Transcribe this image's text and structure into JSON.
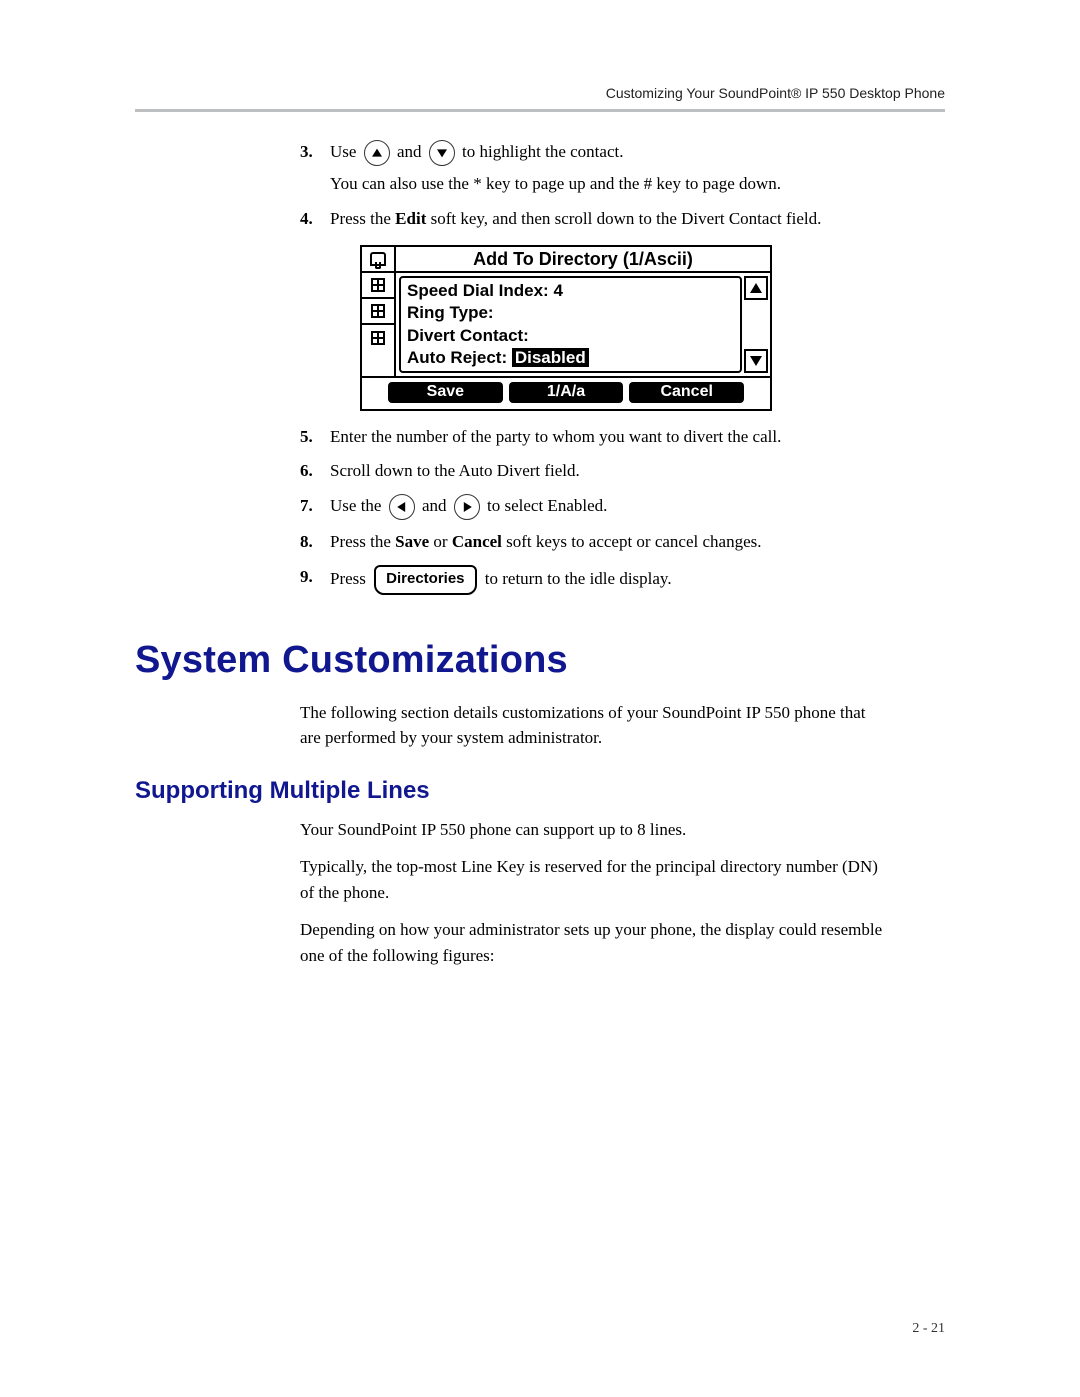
{
  "header": {
    "running_title": "Customizing Your SoundPoint® IP 550 Desktop Phone"
  },
  "steps": [
    {
      "n": "3.",
      "segments": [
        {
          "t": "Use "
        },
        {
          "icon": "up"
        },
        {
          "t": " and "
        },
        {
          "icon": "down"
        },
        {
          "t": " to highlight the contact."
        }
      ],
      "followups": [
        "You can also use the * key to page up and the # key to page down."
      ]
    },
    {
      "n": "4.",
      "segments": [
        {
          "t": "Press the "
        },
        {
          "t": "Edit",
          "b": true
        },
        {
          "t": " soft key, and then scroll down to the Divert Contact field."
        }
      ]
    },
    {
      "n": "5.",
      "segments": [
        {
          "t": "Enter the number of the party to whom you want to divert the call."
        }
      ]
    },
    {
      "n": "6.",
      "segments": [
        {
          "t": "Scroll down to the Auto Divert field."
        }
      ]
    },
    {
      "n": "7.",
      "segments": [
        {
          "t": "Use the "
        },
        {
          "icon": "left"
        },
        {
          "t": " and "
        },
        {
          "icon": "right"
        },
        {
          "t": " to select Enabled."
        }
      ]
    },
    {
      "n": "8.",
      "segments": [
        {
          "t": "Press the "
        },
        {
          "t": "Save",
          "b": true
        },
        {
          "t": " or "
        },
        {
          "t": "Cancel",
          "b": true
        },
        {
          "t": " soft keys to accept or cancel changes."
        }
      ]
    },
    {
      "n": "9.",
      "segments": [
        {
          "t": "Press "
        },
        {
          "key": "Directories"
        },
        {
          "t": " to return to the idle display."
        }
      ]
    }
  ],
  "lcd": {
    "title": "Add To Directory (1/Ascii)",
    "fields": [
      {
        "label": "Speed Dial Index:",
        "value": "4"
      },
      {
        "label": "Ring Type:",
        "value": ""
      },
      {
        "label": "Divert Contact:",
        "value": ""
      },
      {
        "label": "Auto Reject:",
        "value": "Disabled",
        "selected": true
      }
    ],
    "softkeys": [
      "Save",
      "1/A/a",
      "Cancel"
    ],
    "insert_after_step": "4."
  },
  "section": {
    "title": "System Customizations",
    "intro": "The following section details customizations of your SoundPoint IP 550 phone that are performed by your system administrator."
  },
  "subsection": {
    "title": "Supporting Multiple Lines",
    "paras": [
      "Your SoundPoint IP 550 phone can support up to 8 lines.",
      "Typically, the top-most Line Key is reserved for the principal directory number (DN) of the phone.",
      "Depending on how your administrator sets up your phone, the display could resemble one of the following figures:"
    ]
  },
  "footer": {
    "folio": "2 - 21"
  },
  "colors": {
    "heading": "#10178f",
    "rule": "#888a8c",
    "text": "#000000",
    "background": "#ffffff"
  },
  "typography": {
    "body_family": "Book Antiqua / Palatino serif",
    "heading_family": "Gill Sans / Futura sans-serif",
    "body_size_pt": 11,
    "h1_size_pt": 26,
    "h2_size_pt": 16
  }
}
